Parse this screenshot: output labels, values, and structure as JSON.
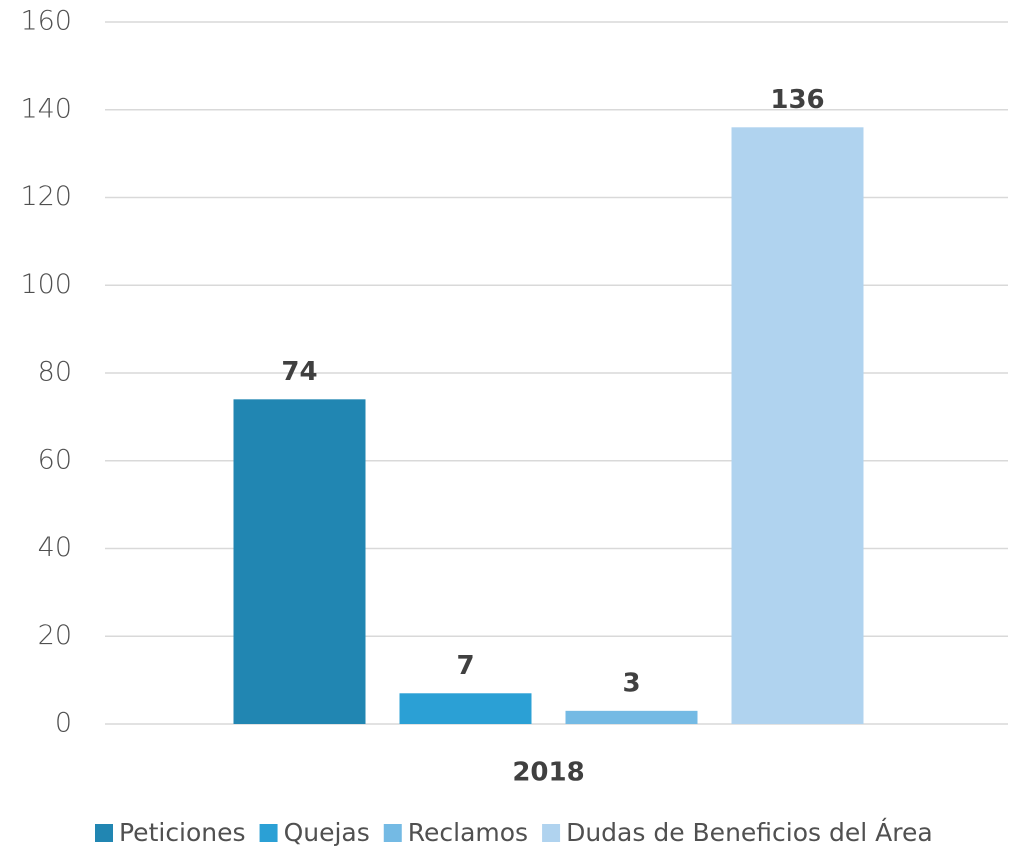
{
  "chart_data": {
    "type": "bar",
    "categories": [
      "2018"
    ],
    "series": [
      {
        "name": "Peticiones",
        "color": "#2186b2",
        "values": [
          74
        ]
      },
      {
        "name": "Quejas",
        "color": "#2ba0d5",
        "values": [
          7
        ]
      },
      {
        "name": "Reclamos",
        "color": "#74bae4",
        "values": [
          3
        ]
      },
      {
        "name": "Dudas de Beneficios del Área",
        "color": "#b0d3ef",
        "values": [
          136
        ]
      }
    ],
    "ylim": [
      0,
      160
    ],
    "yticks": [
      0,
      20,
      40,
      60,
      80,
      100,
      120,
      140,
      160
    ],
    "grid": true,
    "legend": "bottom"
  }
}
